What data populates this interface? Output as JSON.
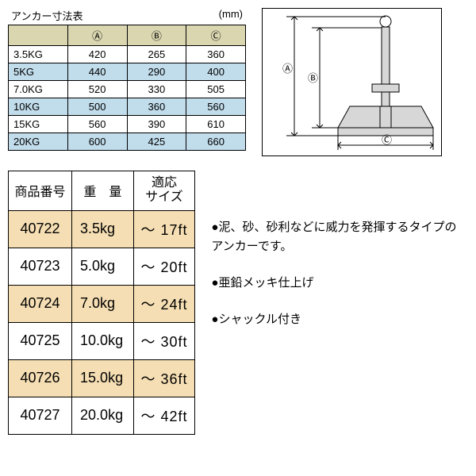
{
  "dim_title": "アンカー寸法表",
  "dim_unit": "(mm)",
  "dim_cols": [
    "Ⓐ",
    "Ⓑ",
    "Ⓒ"
  ],
  "dim_rows": [
    {
      "label": "3.5KG",
      "a": "420",
      "b": "265",
      "c": "360",
      "alt": false
    },
    {
      "label": "5KG",
      "a": "440",
      "b": "290",
      "c": "400",
      "alt": true
    },
    {
      "label": "7.0KG",
      "a": "520",
      "b": "330",
      "c": "505",
      "alt": false
    },
    {
      "label": "10KG",
      "a": "500",
      "b": "360",
      "c": "560",
      "alt": true
    },
    {
      "label": "15KG",
      "a": "560",
      "b": "390",
      "c": "610",
      "alt": false
    },
    {
      "label": "20KG",
      "a": "600",
      "b": "425",
      "c": "660",
      "alt": true
    }
  ],
  "prod_headers": {
    "num": "商品番号",
    "wt": "重　量",
    "size1": "適応",
    "size2": "サイズ"
  },
  "prod_rows": [
    {
      "num": "40722",
      "wt": "3.5kg",
      "size": "～ 17ft",
      "tan": true
    },
    {
      "num": "40723",
      "wt": "5.0kg",
      "size": "～ 20ft",
      "tan": false
    },
    {
      "num": "40724",
      "wt": "7.0kg",
      "size": "～ 24ft",
      "tan": true
    },
    {
      "num": "40725",
      "wt": "10.0kg",
      "size": "～ 30ft",
      "tan": false
    },
    {
      "num": "40726",
      "wt": "15.0kg",
      "size": "～ 36ft",
      "tan": true
    },
    {
      "num": "40727",
      "wt": "20.0kg",
      "size": "～ 42ft",
      "tan": false
    }
  ],
  "notes": [
    "●泥、砂、砂利などに威力を発揮するタイプのアンカーです。",
    "●亜鉛メッキ仕上げ",
    "●シャックル付き"
  ],
  "diagram_labels": {
    "a": "Ⓐ",
    "b": "Ⓑ",
    "c": "Ⓒ"
  },
  "colors": {
    "dim_header_bg": "#d9d6b0",
    "dim_alt_bg": "#c1dceb",
    "prod_tan_bg": "#f5deb3",
    "anchor_fill": "#d7d7d7"
  }
}
